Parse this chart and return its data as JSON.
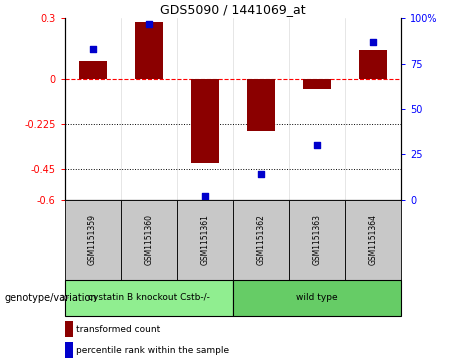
{
  "title": "GDS5090 / 1441069_at",
  "samples": [
    "GSM1151359",
    "GSM1151360",
    "GSM1151361",
    "GSM1151362",
    "GSM1151363",
    "GSM1151364"
  ],
  "bar_values": [
    0.09,
    0.28,
    -0.42,
    -0.26,
    -0.05,
    0.14
  ],
  "percentile_values": [
    83,
    97,
    2,
    14,
    30,
    87
  ],
  "ylim_left": [
    -0.6,
    0.3
  ],
  "ylim_right": [
    0,
    100
  ],
  "left_ticks": [
    0.3,
    0,
    -0.225,
    -0.45,
    -0.6
  ],
  "right_ticks": [
    100,
    75,
    50,
    25,
    0
  ],
  "left_tick_labels": [
    "0.3",
    "0",
    "-0.225",
    "-0.45",
    "-0.6"
  ],
  "right_tick_labels": [
    "100%",
    "75",
    "50",
    "25",
    "0"
  ],
  "hline_y": 0,
  "dotted_lines": [
    -0.225,
    -0.45
  ],
  "bar_color": "#8B0000",
  "dot_color": "#0000CC",
  "groups": [
    {
      "label": "cystatin B knockout Cstb-/-",
      "samples": [
        0,
        1,
        2
      ],
      "color": "#90EE90"
    },
    {
      "label": "wild type",
      "samples": [
        3,
        4,
        5
      ],
      "color": "#66CC66"
    }
  ],
  "group_label": "genotype/variation",
  "legend_bar_label": "transformed count",
  "legend_dot_label": "percentile rank within the sample",
  "fig_width": 4.61,
  "fig_height": 3.63,
  "dpi": 100
}
